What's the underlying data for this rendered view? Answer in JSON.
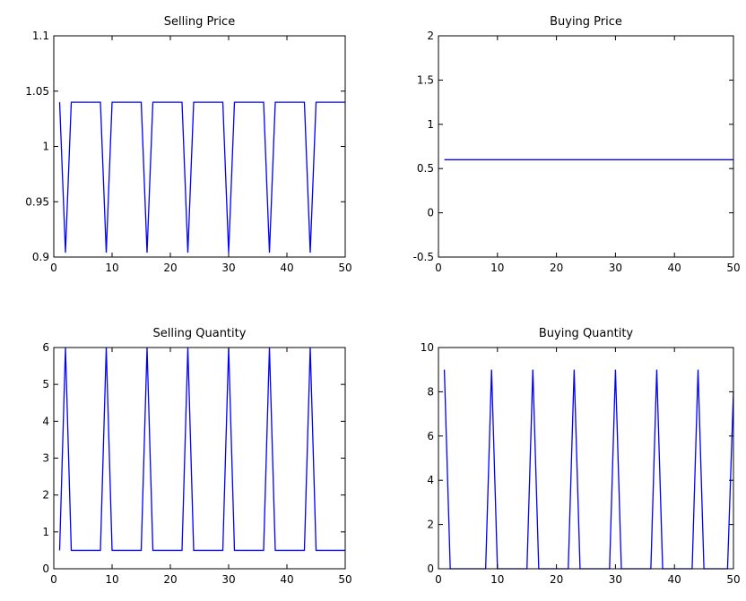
{
  "figure": {
    "background": "#ffffff",
    "line_color": "#0000ff"
  },
  "chart_data": [
    {
      "type": "line",
      "title": "Selling Price",
      "xlabel": "",
      "ylabel": "",
      "xlim": [
        0,
        50
      ],
      "ylim": [
        0.9,
        1.1
      ],
      "xticks": [
        0,
        10,
        20,
        30,
        40,
        50
      ],
      "xtick_labels": [
        "0",
        "10",
        "20",
        "30",
        "40",
        "50"
      ],
      "yticks": [
        0.9,
        0.95,
        1,
        1.05,
        1.1
      ],
      "ytick_labels": [
        "0.9",
        "0.95",
        "1",
        "1.05",
        "1.1"
      ],
      "grid": false,
      "series": [
        {
          "color": "#0000ff",
          "x": [
            1,
            2,
            3,
            4,
            5,
            6,
            7,
            8,
            9,
            10,
            11,
            12,
            13,
            14,
            15,
            16,
            17,
            18,
            19,
            20,
            21,
            22,
            23,
            24,
            25,
            26,
            27,
            28,
            29,
            30,
            31,
            32,
            33,
            34,
            35,
            36,
            37,
            38,
            39,
            40,
            41,
            42,
            43,
            44,
            45,
            46,
            47,
            48,
            49,
            50
          ],
          "y": [
            1.04,
            0.904,
            1.04,
            1.04,
            1.04,
            1.04,
            1.04,
            1.04,
            0.904,
            1.04,
            1.04,
            1.04,
            1.04,
            1.04,
            1.04,
            0.904,
            1.04,
            1.04,
            1.04,
            1.04,
            1.04,
            1.04,
            0.904,
            1.04,
            1.04,
            1.04,
            1.04,
            1.04,
            1.04,
            0.904,
            1.04,
            1.04,
            1.04,
            1.04,
            1.04,
            1.04,
            0.904,
            1.04,
            1.04,
            1.04,
            1.04,
            1.04,
            1.04,
            0.904,
            1.04,
            1.04,
            1.04,
            1.04,
            1.04,
            1.04
          ]
        }
      ]
    },
    {
      "type": "line",
      "title": "Buying Price",
      "xlabel": "",
      "ylabel": "",
      "xlim": [
        0,
        50
      ],
      "ylim": [
        -0.5,
        2
      ],
      "xticks": [
        0,
        10,
        20,
        30,
        40,
        50
      ],
      "xtick_labels": [
        "0",
        "10",
        "20",
        "30",
        "40",
        "50"
      ],
      "yticks": [
        -0.5,
        0,
        0.5,
        1,
        1.5,
        2
      ],
      "ytick_labels": [
        "-0.5",
        "0",
        "0.5",
        "1",
        "1.5",
        "2"
      ],
      "grid": false,
      "series": [
        {
          "color": "#0000ff",
          "x": [
            1,
            50
          ],
          "y": [
            0.6,
            0.6
          ]
        }
      ]
    },
    {
      "type": "line",
      "title": "Selling Quantity",
      "xlabel": "",
      "ylabel": "",
      "xlim": [
        0,
        50
      ],
      "ylim": [
        0,
        6
      ],
      "xticks": [
        0,
        10,
        20,
        30,
        40,
        50
      ],
      "xtick_labels": [
        "0",
        "10",
        "20",
        "30",
        "40",
        "50"
      ],
      "yticks": [
        0,
        1,
        2,
        3,
        4,
        5,
        6
      ],
      "ytick_labels": [
        "0",
        "1",
        "2",
        "3",
        "4",
        "5",
        "6"
      ],
      "grid": false,
      "series": [
        {
          "color": "#0000ff",
          "x": [
            1,
            2,
            3,
            4,
            5,
            6,
            7,
            8,
            9,
            10,
            11,
            12,
            13,
            14,
            15,
            16,
            17,
            18,
            19,
            20,
            21,
            22,
            23,
            24,
            25,
            26,
            27,
            28,
            29,
            30,
            31,
            32,
            33,
            34,
            35,
            36,
            37,
            38,
            39,
            40,
            41,
            42,
            43,
            44,
            45,
            46,
            47,
            48,
            49,
            50
          ],
          "y": [
            0.5,
            6,
            0.5,
            0.5,
            0.5,
            0.5,
            0.5,
            0.5,
            6,
            0.5,
            0.5,
            0.5,
            0.5,
            0.5,
            0.5,
            6,
            0.5,
            0.5,
            0.5,
            0.5,
            0.5,
            0.5,
            6,
            0.5,
            0.5,
            0.5,
            0.5,
            0.5,
            0.5,
            6,
            0.5,
            0.5,
            0.5,
            0.5,
            0.5,
            0.5,
            6,
            0.5,
            0.5,
            0.5,
            0.5,
            0.5,
            0.5,
            6,
            0.5,
            0.5,
            0.5,
            0.5,
            0.5,
            0.5
          ]
        }
      ]
    },
    {
      "type": "line",
      "title": "Buying Quantity",
      "xlabel": "",
      "ylabel": "",
      "xlim": [
        0,
        50
      ],
      "ylim": [
        0,
        10
      ],
      "xticks": [
        0,
        10,
        20,
        30,
        40,
        50
      ],
      "xtick_labels": [
        "0",
        "10",
        "20",
        "30",
        "40",
        "50"
      ],
      "yticks": [
        0,
        2,
        4,
        6,
        8,
        10
      ],
      "ytick_labels": [
        "0",
        "2",
        "4",
        "6",
        "8",
        "10"
      ],
      "grid": false,
      "series": [
        {
          "color": "#0000ff",
          "x": [
            1,
            2,
            3,
            4,
            5,
            6,
            7,
            8,
            9,
            10,
            11,
            12,
            13,
            14,
            15,
            16,
            17,
            18,
            19,
            20,
            21,
            22,
            23,
            24,
            25,
            26,
            27,
            28,
            29,
            30,
            31,
            32,
            33,
            34,
            35,
            36,
            37,
            38,
            39,
            40,
            41,
            42,
            43,
            44,
            45,
            46,
            47,
            48,
            49,
            50
          ],
          "y": [
            9,
            0,
            0,
            0,
            0,
            0,
            0,
            0,
            9,
            0,
            0,
            0,
            0,
            0,
            0,
            9,
            0,
            0,
            0,
            0,
            0,
            0,
            9,
            0,
            0,
            0,
            0,
            0,
            0,
            9,
            0,
            0,
            0,
            0,
            0,
            0,
            9,
            0,
            0,
            0,
            0,
            0,
            0,
            9,
            0,
            0,
            0,
            0,
            0,
            8
          ]
        }
      ]
    }
  ]
}
